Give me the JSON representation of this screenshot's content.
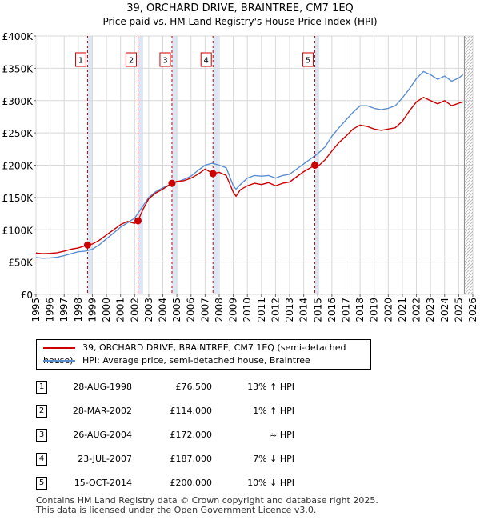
{
  "chart_data": {
    "type": "line",
    "title": "39, ORCHARD DRIVE, BRAINTREE, CM7 1EQ",
    "subtitle": "Price paid vs. HM Land Registry's House Price Index (HPI)",
    "xlim": [
      1995,
      2026
    ],
    "ylim": [
      0,
      400000
    ],
    "y_ticks": [
      0,
      50000,
      100000,
      150000,
      200000,
      250000,
      300000,
      350000,
      400000
    ],
    "y_tick_labels": [
      "£0",
      "£50K",
      "£100K",
      "£150K",
      "£200K",
      "£250K",
      "£300K",
      "£350K",
      "£400K"
    ],
    "x_ticks": [
      1995,
      1996,
      1997,
      1998,
      1999,
      2000,
      2001,
      2002,
      2003,
      2004,
      2005,
      2006,
      2007,
      2008,
      2009,
      2010,
      2011,
      2012,
      2013,
      2014,
      2015,
      2016,
      2017,
      2018,
      2019,
      2020,
      2021,
      2022,
      2023,
      2024,
      2025,
      2026
    ],
    "grid": true,
    "shaded_bands": [
      [
        1998.66,
        1999.0
      ],
      [
        2002.24,
        2002.6
      ],
      [
        2004.65,
        2005.0
      ],
      [
        2007.56,
        2007.95
      ],
      [
        2014.79,
        2015.1
      ]
    ],
    "future_hatch_from": 2025.4,
    "series": [
      {
        "name": "39, ORCHARD DRIVE, BRAINTREE, CM7 1EQ (semi-detached house)",
        "color": "#cc0000",
        "x": [
          1995.0,
          1995.5,
          1996.0,
          1996.5,
          1997.0,
          1997.5,
          1998.0,
          1998.66,
          1999.0,
          1999.5,
          2000.0,
          2000.5,
          2001.0,
          2001.5,
          2002.0,
          2002.24,
          2002.6,
          2003.0,
          2003.5,
          2004.0,
          2004.65,
          2005.0,
          2005.5,
          2006.0,
          2006.5,
          2007.0,
          2007.56,
          2008.0,
          2008.5,
          2009.0,
          2009.2,
          2009.5,
          2010.0,
          2010.5,
          2011.0,
          2011.5,
          2012.0,
          2012.5,
          2013.0,
          2013.5,
          2014.0,
          2014.79,
          2015.0,
          2015.5,
          2016.0,
          2016.5,
          2017.0,
          2017.5,
          2018.0,
          2018.5,
          2019.0,
          2019.5,
          2020.0,
          2020.5,
          2021.0,
          2021.5,
          2022.0,
          2022.5,
          2023.0,
          2023.5,
          2024.0,
          2024.5,
          2025.0,
          2025.3
        ],
        "values": [
          64000,
          63000,
          63500,
          64500,
          67000,
          70000,
          72000,
          76500,
          78000,
          84000,
          92000,
          100000,
          108000,
          113000,
          110000,
          114000,
          132000,
          148000,
          157000,
          163000,
          172000,
          175000,
          176000,
          180000,
          186000,
          194000,
          187000,
          189000,
          184000,
          158000,
          152000,
          162000,
          168000,
          172000,
          170000,
          173000,
          168000,
          172000,
          174000,
          182000,
          190000,
          200000,
          198000,
          208000,
          222000,
          235000,
          245000,
          256000,
          262000,
          260000,
          256000,
          254000,
          256000,
          258000,
          268000,
          284000,
          298000,
          305000,
          300000,
          295000,
          300000,
          292000,
          296000,
          298000
        ]
      },
      {
        "name": "HPI: Average price, semi-detached house, Braintree",
        "color": "#5b8fd1",
        "x": [
          1995.0,
          1995.5,
          1996.0,
          1996.5,
          1997.0,
          1997.5,
          1998.0,
          1998.5,
          1999.0,
          1999.5,
          2000.0,
          2000.5,
          2001.0,
          2001.5,
          2002.0,
          2002.5,
          2003.0,
          2003.5,
          2004.0,
          2004.5,
          2005.0,
          2005.5,
          2006.0,
          2006.5,
          2007.0,
          2007.5,
          2008.0,
          2008.5,
          2009.0,
          2009.2,
          2009.5,
          2010.0,
          2010.5,
          2011.0,
          2011.5,
          2012.0,
          2012.5,
          2013.0,
          2013.5,
          2014.0,
          2014.5,
          2015.0,
          2015.5,
          2016.0,
          2016.5,
          2017.0,
          2017.5,
          2018.0,
          2018.5,
          2019.0,
          2019.5,
          2020.0,
          2020.5,
          2021.0,
          2021.5,
          2022.0,
          2022.5,
          2023.0,
          2023.5,
          2024.0,
          2024.5,
          2025.0,
          2025.3
        ],
        "values": [
          57000,
          56000,
          56500,
          57500,
          60000,
          63000,
          66000,
          67000,
          70000,
          77000,
          86000,
          95000,
          104000,
          111000,
          118000,
          134000,
          150000,
          159000,
          165000,
          170000,
          174000,
          178000,
          183000,
          192000,
          200000,
          203000,
          200000,
          196000,
          168000,
          163000,
          170000,
          180000,
          184000,
          183000,
          184000,
          180000,
          184000,
          186000,
          194000,
          202000,
          210000,
          218000,
          228000,
          245000,
          258000,
          270000,
          282000,
          292000,
          292000,
          288000,
          286000,
          288000,
          292000,
          304000,
          318000,
          334000,
          345000,
          340000,
          333000,
          338000,
          330000,
          335000,
          340000
        ]
      }
    ],
    "sale_markers": [
      {
        "label": "1",
        "x": 1998.66,
        "value": 76500
      },
      {
        "label": "2",
        "x": 2002.24,
        "value": 114000
      },
      {
        "label": "3",
        "x": 2004.65,
        "value": 172000
      },
      {
        "label": "4",
        "x": 2007.56,
        "value": 187000
      },
      {
        "label": "5",
        "x": 2014.79,
        "value": 200000
      }
    ]
  },
  "legend": {
    "items": [
      {
        "label": "39, ORCHARD DRIVE, BRAINTREE, CM7 1EQ (semi-detached house)",
        "color": "#cc0000"
      },
      {
        "label": "HPI: Average price, semi-detached house, Braintree",
        "color": "#5b8fd1"
      }
    ]
  },
  "transactions": [
    {
      "num": "1",
      "date": "28-AUG-1998",
      "price": "£76,500",
      "delta": "13% ↑ HPI"
    },
    {
      "num": "2",
      "date": "28-MAR-2002",
      "price": "£114,000",
      "delta": "1% ↑ HPI"
    },
    {
      "num": "3",
      "date": "26-AUG-2004",
      "price": "£172,000",
      "delta": "≈ HPI"
    },
    {
      "num": "4",
      "date": "23-JUL-2007",
      "price": "£187,000",
      "delta": "7% ↓ HPI"
    },
    {
      "num": "5",
      "date": "15-OCT-2014",
      "price": "£200,000",
      "delta": "10% ↓ HPI"
    }
  ],
  "footer": {
    "line1": "Contains HM Land Registry data © Crown copyright and database right 2025.",
    "line2": "This data is licensed under the Open Government Licence v3.0."
  }
}
